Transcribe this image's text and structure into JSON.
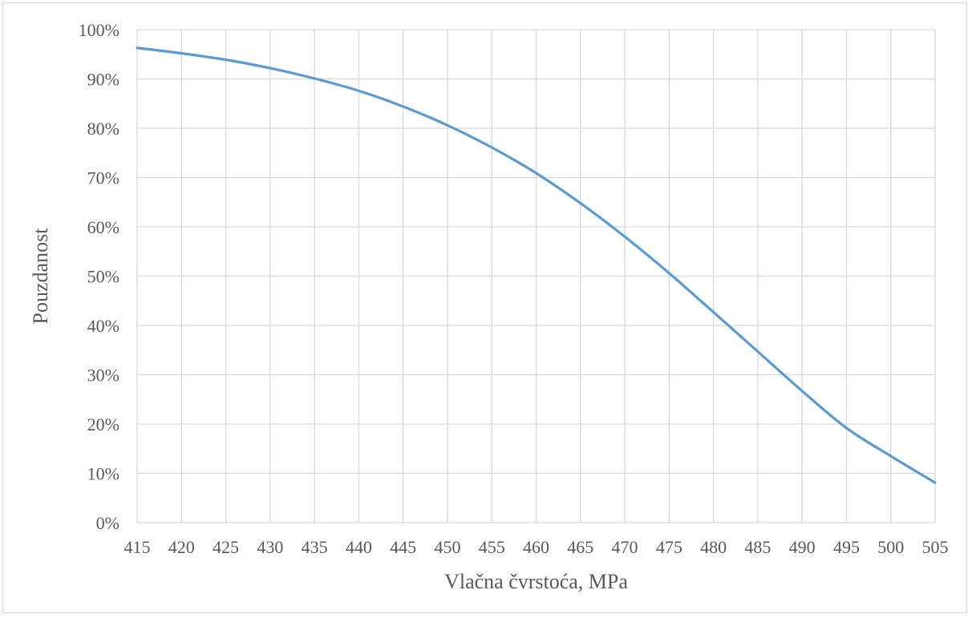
{
  "chart_data": {
    "type": "line",
    "title": "",
    "xlabel": "Vlačna čvrstoća, MPa",
    "ylabel": "Pouzdanost",
    "xlim": [
      415,
      505
    ],
    "ylim": [
      0,
      100
    ],
    "grid": true,
    "legend": "none",
    "x_ticks": [
      "415",
      "420",
      "425",
      "430",
      "435",
      "440",
      "445",
      "450",
      "455",
      "460",
      "465",
      "470",
      "475",
      "480",
      "485",
      "490",
      "495",
      "500",
      "505"
    ],
    "y_ticks": [
      "0%",
      "10%",
      "20%",
      "30%",
      "40%",
      "50%",
      "60%",
      "70%",
      "80%",
      "90%",
      "100%"
    ],
    "series": [
      {
        "color": "#5b9bd5",
        "x": [
          415,
          420,
          425,
          430,
          435,
          440,
          445,
          450,
          455,
          460,
          465,
          470,
          475,
          480,
          485,
          490,
          495,
          500,
          505
        ],
        "y": [
          96.3,
          95.2,
          93.9,
          92.2,
          90.1,
          87.6,
          84.4,
          80.6,
          76.1,
          70.9,
          64.8,
          58.0,
          50.6,
          42.7,
          34.7,
          26.7,
          19.2,
          13.5,
          8.1
        ]
      }
    ]
  },
  "colors": {
    "grid": "#d9d9d9",
    "line": "#5b9bd5",
    "text": "#595959"
  }
}
